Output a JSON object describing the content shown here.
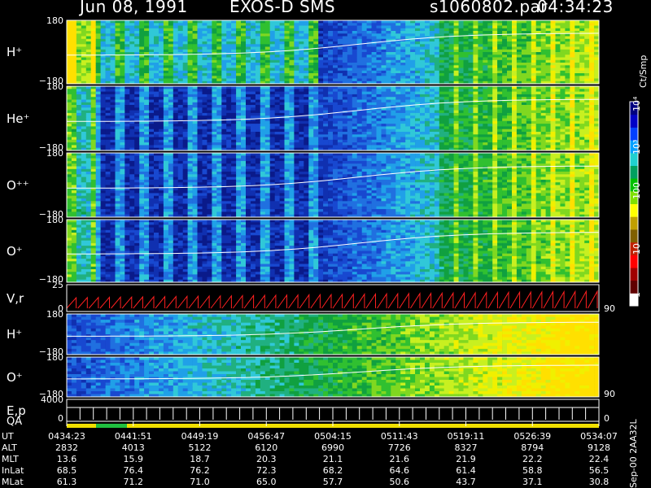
{
  "header": {
    "date": "Jun 08, 1991",
    "instrument": "EXOS-D SMS",
    "file": "s1060802.par",
    "time": "04:34:23"
  },
  "colorbar": {
    "unit_label": "Ct/Smp",
    "tick_labels": [
      "1",
      "10",
      "100",
      "10³",
      "10⁴"
    ],
    "colors": [
      "#000080",
      "#0000c8",
      "#0040ff",
      "#00a0ff",
      "#20d0d0",
      "#00a060",
      "#00c000",
      "#80e000",
      "#ffff00",
      "#c0a000",
      "#806000",
      "#c02000",
      "#ff0000",
      "#a00000",
      "#600000",
      "#ffffff"
    ]
  },
  "chart_data": {
    "type": "heatmap",
    "panels": [
      {
        "label": "H⁺",
        "ymax": "180",
        "ymin": "−180"
      },
      {
        "label": "He⁺",
        "ymax": "180",
        "ymin": "−180"
      },
      {
        "label": "O⁺⁺",
        "ymax": "180",
        "ymin": "−180"
      },
      {
        "label": "O⁺",
        "ymax": "180",
        "ymin": "−180"
      },
      {
        "label": "V,r",
        "ymax": "25",
        "ymin": "0",
        "right": "90"
      },
      {
        "label": "H⁺",
        "ymax": "180",
        "ymin": "−180"
      },
      {
        "label": "O⁺",
        "ymax": "180",
        "ymin": "−180",
        "right": "90"
      },
      {
        "label": "E,p",
        "ymax": "4000",
        "ymin": "0",
        "right": "0"
      }
    ],
    "qa_label": "QA",
    "ut_ticks": [
      "0434:23",
      "0441:51",
      "0449:19",
      "0456:47",
      "0504:15",
      "0511:43",
      "0519:11",
      "0526:39",
      "0534:07"
    ],
    "table": {
      "rows": [
        {
          "label": "UT",
          "values": [
            "0434:23",
            "0441:51",
            "0449:19",
            "0456:47",
            "0504:15",
            "0511:43",
            "0519:11",
            "0526:39",
            "0534:07"
          ]
        },
        {
          "label": "ALT",
          "values": [
            "2832",
            "4013",
            "5122",
            "6120",
            "6990",
            "7726",
            "8327",
            "8794",
            "9128"
          ]
        },
        {
          "label": "MLT",
          "values": [
            "13.6",
            "15.9",
            "18.7",
            "20.3",
            "21.1",
            "21.6",
            "21.9",
            "22.2",
            "22.4"
          ]
        },
        {
          "label": "InLat",
          "values": [
            "68.5",
            "76.4",
            "76.2",
            "72.3",
            "68.2",
            "64.6",
            "61.4",
            "58.8",
            "56.5"
          ]
        },
        {
          "label": "MLat",
          "values": [
            "61.3",
            "71.2",
            "71.0",
            "65.0",
            "57.7",
            "50.6",
            "43.7",
            "37.1",
            "30.8"
          ]
        }
      ]
    }
  },
  "footer_stamp": "Sep-00 2AA32L"
}
